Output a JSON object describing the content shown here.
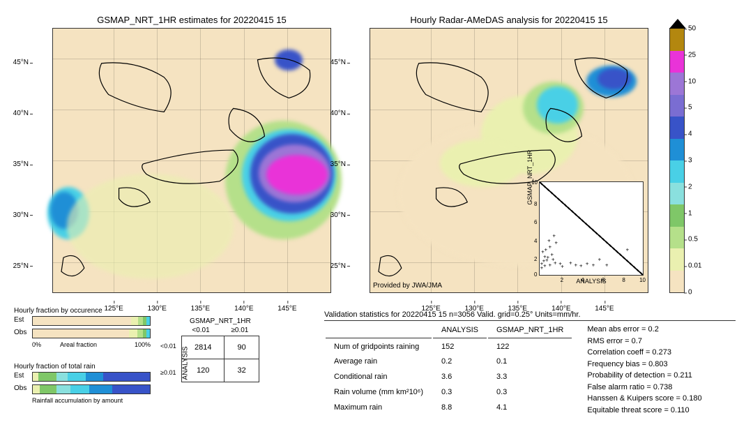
{
  "maps": {
    "left": {
      "title": "GSMAP_NRT_1HR estimates for 20220415 15",
      "y_ticks": [
        {
          "v": 45,
          "l": "45°N"
        },
        {
          "v": 40,
          "l": "40°N"
        },
        {
          "v": 35,
          "l": "35°N"
        },
        {
          "v": 30,
          "l": "30°N"
        },
        {
          "v": 25,
          "l": "25°N"
        }
      ],
      "x_ticks": [
        {
          "v": 125,
          "l": "125°E"
        },
        {
          "v": 130,
          "l": "130°E"
        },
        {
          "v": 135,
          "l": "135°E"
        },
        {
          "v": 140,
          "l": "140°E"
        },
        {
          "v": 145,
          "l": "145°E"
        }
      ],
      "xlim": [
        118,
        150
      ],
      "ylim": [
        22,
        48
      ]
    },
    "right": {
      "title": "Hourly Radar-AMeDAS analysis for 20220415 15",
      "y_ticks": [
        {
          "v": 45,
          "l": "45°N"
        },
        {
          "v": 40,
          "l": "40°N"
        },
        {
          "v": 35,
          "l": "35°N"
        },
        {
          "v": 30,
          "l": "30°N"
        },
        {
          "v": 25,
          "l": "25°N"
        }
      ],
      "x_ticks": [
        {
          "v": 125,
          "l": "125°E"
        },
        {
          "v": 130,
          "l": "130°E"
        },
        {
          "v": 135,
          "l": "135°E"
        },
        {
          "v": 140,
          "l": "140°E"
        },
        {
          "v": 145,
          "l": "145°E"
        }
      ],
      "xlim": [
        118,
        150
      ],
      "ylim": [
        22,
        48
      ],
      "attribution": "Provided by JWA/JMA"
    }
  },
  "colorbar": {
    "ticks": [
      "50",
      "25",
      "10",
      "5",
      "4",
      "3",
      "2",
      "1",
      "0.5",
      "0.01",
      "0"
    ],
    "colors": [
      "#b3870f",
      "#e933d8",
      "#9c76d6",
      "#7a6dd2",
      "#3853c8",
      "#1f8fd6",
      "#49d0e6",
      "#8ae0de",
      "#7fc768",
      "#b5e08a",
      "#eaf0b0",
      "#f5e3c1"
    ]
  },
  "inset": {
    "xlabel": "ANALYSIS",
    "ylabel": "GSMAP_NRT_1HR",
    "xlim": [
      0,
      10
    ],
    "ylim": [
      0,
      10
    ],
    "ticks": [
      "0",
      "2",
      "4",
      "6",
      "8",
      "10"
    ],
    "points": [
      [
        0.2,
        0.1
      ],
      [
        0.5,
        0.3
      ],
      [
        1,
        0.4
      ],
      [
        1.5,
        0.6
      ],
      [
        2,
        0.5
      ],
      [
        0.4,
        0.8
      ],
      [
        0.8,
        1.2
      ],
      [
        1.3,
        1.0
      ],
      [
        2.2,
        0.2
      ],
      [
        3,
        0.6
      ],
      [
        3.5,
        0.4
      ],
      [
        4,
        0.3
      ],
      [
        4.6,
        0.5
      ],
      [
        5.2,
        0.4
      ],
      [
        5.8,
        1.0
      ],
      [
        6.5,
        0.4
      ],
      [
        8.5,
        2.0
      ],
      [
        0.3,
        1.8
      ],
      [
        1,
        2.3
      ],
      [
        1.6,
        2.8
      ],
      [
        0.6,
        2.0
      ],
      [
        0.9,
        3.0
      ],
      [
        1.4,
        3.5
      ],
      [
        0.2,
        0.5
      ],
      [
        0.7,
        0.9
      ],
      [
        1.2,
        1.5
      ],
      [
        0.5,
        1.3
      ]
    ]
  },
  "hbar1": {
    "title": "Hourly fraction by occurence",
    "rows": [
      {
        "label": "Est",
        "segs": [
          {
            "w": 84,
            "c": "#f5e3c1"
          },
          {
            "w": 6,
            "c": "#eaf0b0"
          },
          {
            "w": 4,
            "c": "#b5e08a"
          },
          {
            "w": 3,
            "c": "#7fc768"
          },
          {
            "w": 3,
            "c": "#49d0e6"
          }
        ]
      },
      {
        "label": "Obs",
        "segs": [
          {
            "w": 82,
            "c": "#f5e3c1"
          },
          {
            "w": 7,
            "c": "#eaf0b0"
          },
          {
            "w": 5,
            "c": "#b5e08a"
          },
          {
            "w": 3,
            "c": "#7fc768"
          },
          {
            "w": 3,
            "c": "#49d0e6"
          }
        ]
      }
    ],
    "axis_left": "0%",
    "axis_mid": "Areal fraction",
    "axis_right": "100%"
  },
  "hbar2": {
    "title": "Hourly fraction of total rain",
    "rows": [
      {
        "label": "Est",
        "segs": [
          {
            "w": 5,
            "c": "#eaf0b0"
          },
          {
            "w": 15,
            "c": "#7fc768"
          },
          {
            "w": 10,
            "c": "#8ae0de"
          },
          {
            "w": 15,
            "c": "#49d0e6"
          },
          {
            "w": 15,
            "c": "#1f8fd6"
          },
          {
            "w": 40,
            "c": "#3853c8"
          }
        ]
      },
      {
        "label": "Obs",
        "segs": [
          {
            "w": 6,
            "c": "#eaf0b0"
          },
          {
            "w": 14,
            "c": "#7fc768"
          },
          {
            "w": 12,
            "c": "#8ae0de"
          },
          {
            "w": 16,
            "c": "#49d0e6"
          },
          {
            "w": 20,
            "c": "#1f8fd6"
          },
          {
            "w": 32,
            "c": "#3853c8"
          }
        ]
      }
    ],
    "caption": "Rainfall accumulation by amount"
  },
  "contingency": {
    "col_header": "GSMAP_NRT_1HR",
    "row_header": "ANALYSIS",
    "col_labels": [
      "<0.01",
      "≥0.01"
    ],
    "row_labels": [
      "<0.01",
      "≥0.01"
    ],
    "cells": [
      [
        "2814",
        "90"
      ],
      [
        "120",
        "32"
      ]
    ]
  },
  "stats": {
    "title": "Validation statistics for 20220415 15  n=3056 Valid. grid=0.25°  Units=mm/hr.",
    "table": {
      "headers": [
        "",
        "ANALYSIS",
        "GSMAP_NRT_1HR"
      ],
      "rows": [
        [
          "Num of gridpoints raining",
          "152",
          "122"
        ],
        [
          "Average rain",
          "0.2",
          "0.1"
        ],
        [
          "Conditional rain",
          "3.6",
          "3.3"
        ],
        [
          "Rain volume (mm km²10⁶)",
          "0.3",
          "0.3"
        ],
        [
          "Maximum rain",
          "8.8",
          "4.1"
        ]
      ]
    },
    "metrics": [
      "Mean abs error =    0.2",
      "RMS error =    0.7",
      "Correlation coeff =  0.273",
      "Frequency bias =  0.803",
      "Probability of detection =  0.211",
      "False alarm ratio =  0.738",
      "Hanssen & Kuipers score =  0.180",
      "Equitable threat score =  0.110"
    ]
  }
}
